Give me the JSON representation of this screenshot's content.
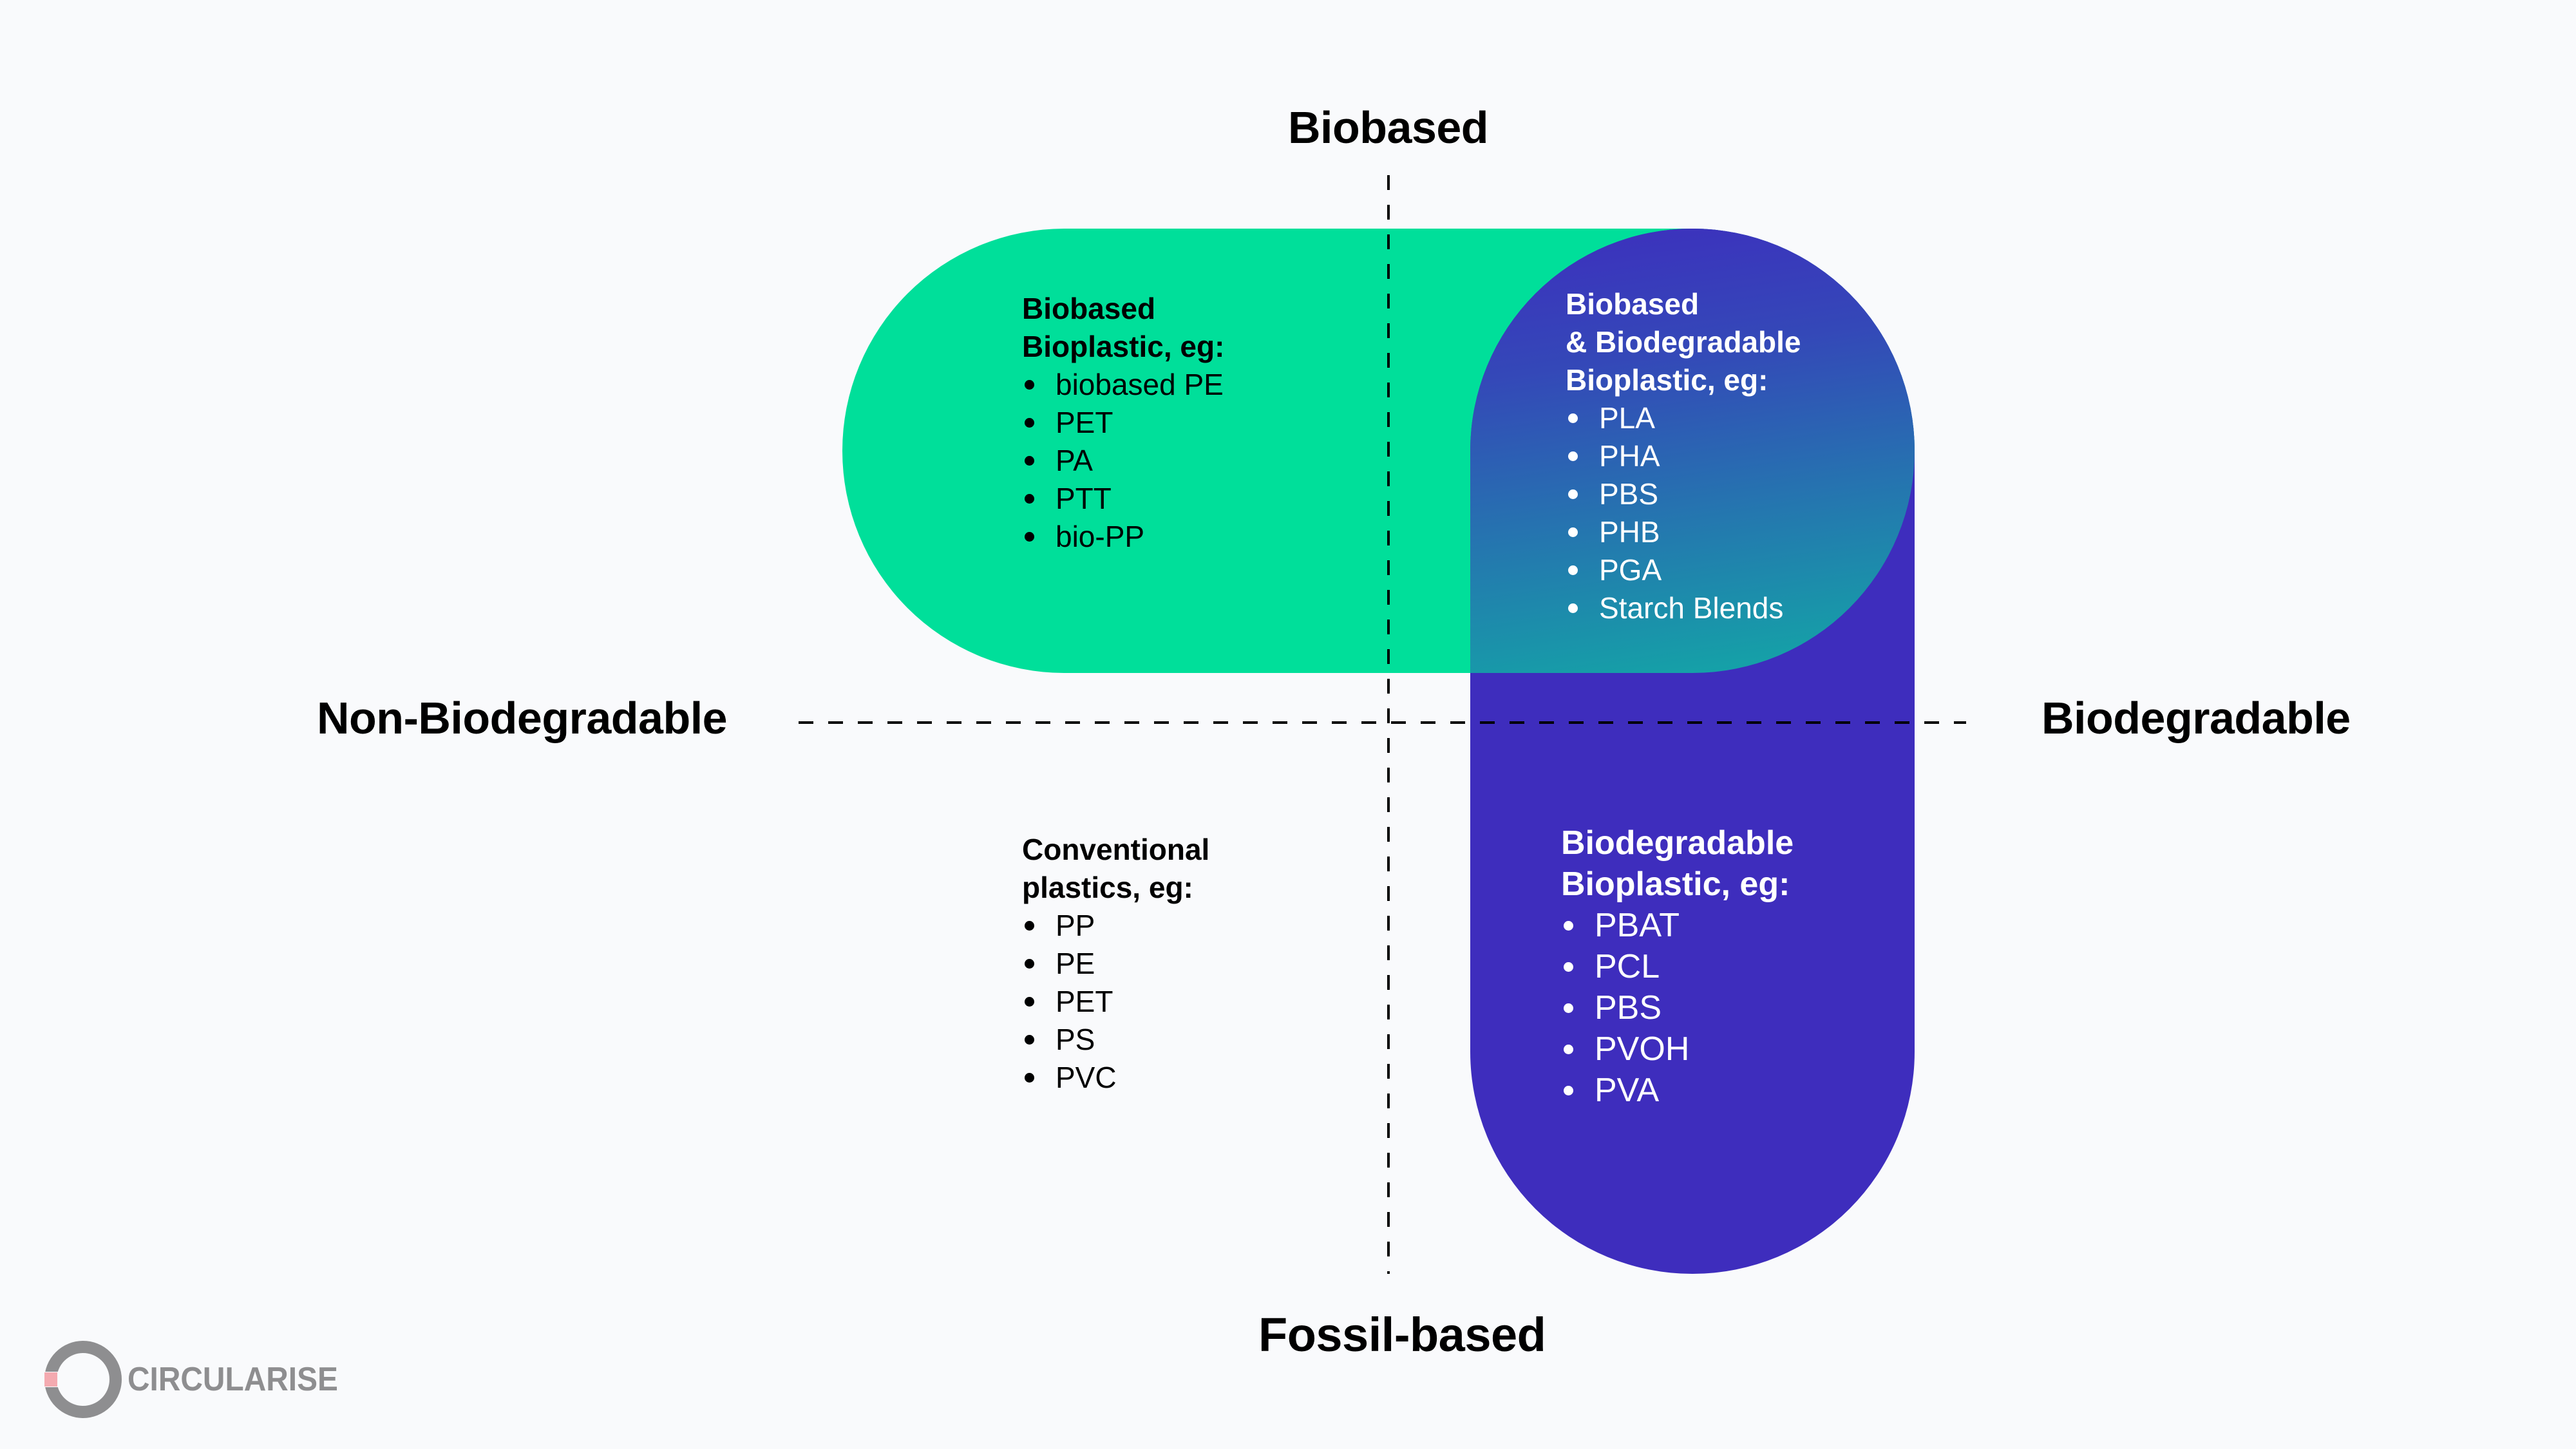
{
  "axes": {
    "top": "Biobased",
    "bottom": "Fossil-based",
    "left": "Non-Biodegradable",
    "right": "Biodegradable"
  },
  "colors": {
    "background": "#f9fafc",
    "biobased_green": "#00df9a",
    "biodegradable_purple": "#3e2dbd",
    "overlap_gradient_top": "#3d2ebe",
    "overlap_gradient_bottom": "#12a9a6",
    "logo_gray": "#8e8e90",
    "logo_accent": "#f4aab0"
  },
  "quadrants": {
    "biobased": {
      "title_line1": "Biobased",
      "title_line2": "Bioplastic, eg:",
      "items": [
        "biobased PE",
        "PET",
        "PA",
        "PTT",
        "bio-PP"
      ]
    },
    "biobased_biodegradable": {
      "title_line1": "Biobased",
      "title_line2": "& Biodegradable",
      "title_line3": "Bioplastic, eg:",
      "items": [
        "PLA",
        "PHA",
        "PBS",
        "PHB",
        "PGA",
        "Starch Blends"
      ]
    },
    "biodegradable": {
      "title_line1": "Biodegradable",
      "title_line2": "Bioplastic, eg:",
      "items": [
        "PBAT",
        "PCL",
        "PBS",
        "PVOH",
        "PVA"
      ]
    },
    "conventional": {
      "title_line1": "Conventional",
      "title_line2": "plastics, eg:",
      "items": [
        "PP",
        "PE",
        "PET",
        "PS",
        "PVC"
      ]
    }
  },
  "logo": {
    "text": "CIRCULARISE",
    "icon": "circular-ring-logo-icon"
  }
}
